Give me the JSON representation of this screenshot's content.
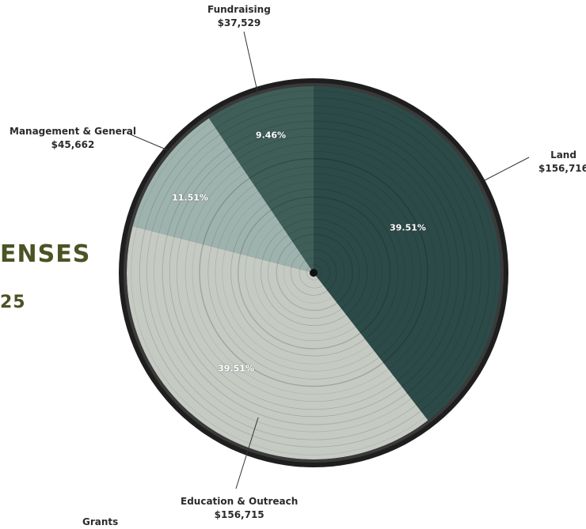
{
  "heading": {
    "line1": "ENSES",
    "line2": "25"
  },
  "chart_data": {
    "type": "pie",
    "categories": [
      "Land",
      "Education & Outreach",
      "Management & General",
      "Fundraising"
    ],
    "values": [
      156716,
      156715,
      45662,
      37529
    ],
    "value_labels": [
      "$156,716",
      "$156,715",
      "$45,662",
      "$37,529"
    ],
    "percent_labels": [
      "39.51%",
      "39.51%",
      "11.51%",
      "9.46%"
    ],
    "other_labels": [
      "Grants"
    ],
    "colors": [
      "#2c4a48",
      "#c5cac3",
      "#9fb3ae",
      "#3f5e58"
    ],
    "start": "top, clockwise"
  }
}
